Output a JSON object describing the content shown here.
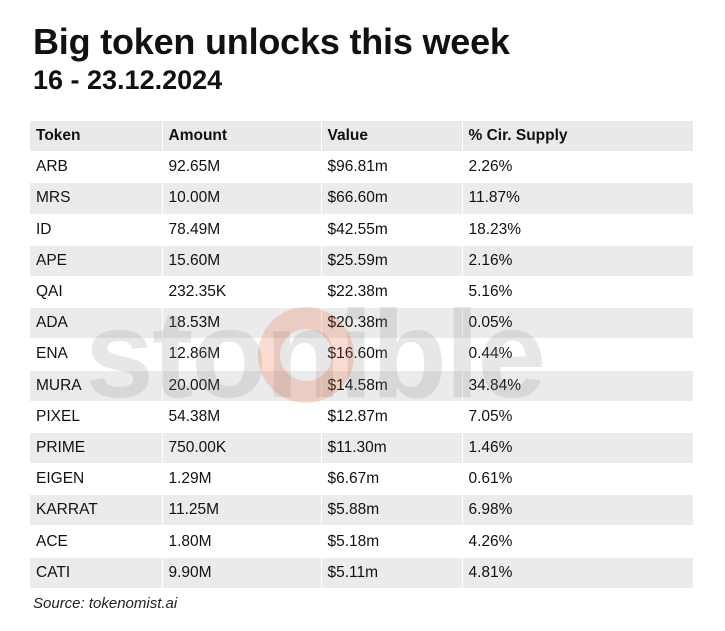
{
  "title": "Big token unlocks this week",
  "subtitle": "16 - 23.12.2024",
  "table": {
    "headers": [
      "Token",
      "Amount",
      "Value",
      "% Cir. Supply"
    ],
    "rows": [
      [
        "ARB",
        "92.65M",
        "$96.81m",
        "2.26%"
      ],
      [
        "MRS",
        "10.00M",
        "$66.60m",
        "11.87%"
      ],
      [
        "ID",
        "78.49M",
        "$42.55m",
        "18.23%"
      ],
      [
        "APE",
        "15.60M",
        "$25.59m",
        "2.16%"
      ],
      [
        "QAI",
        "232.35K",
        "$22.38m",
        "5.16%"
      ],
      [
        "ADA",
        "18.53M",
        "$20.38m",
        "0.05%"
      ],
      [
        "ENA",
        "12.86M",
        "$16.60m",
        "0.44%"
      ],
      [
        "MURA",
        "20.00M",
        "$14.58m",
        "34.84%"
      ],
      [
        "PIXEL",
        "54.38M",
        "$12.87m",
        "7.05%"
      ],
      [
        "PRIME",
        "750.00K",
        "$11.30m",
        "1.46%"
      ],
      [
        "EIGEN",
        "1.29M",
        "$6.67m",
        "0.61%"
      ],
      [
        "KARRAT",
        "11.25M",
        "$5.88m",
        "6.98%"
      ],
      [
        "ACE",
        "1.80M",
        "$5.18m",
        "4.26%"
      ],
      [
        "CATI",
        "9.90M",
        "$5.11m",
        "4.81%"
      ]
    ]
  },
  "watermark": {
    "text": "stonible",
    "text_color": "#8a8a8a",
    "accent_color": "#e8521f"
  },
  "source": "Source: tokenomist.ai"
}
